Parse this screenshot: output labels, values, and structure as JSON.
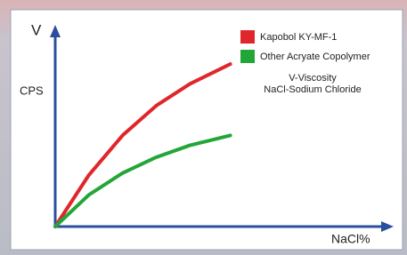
{
  "chart_data": {
    "type": "line",
    "y_label": "V",
    "y_unit_label": "CPS",
    "x_label": "NaCl%",
    "annotations": [
      "V-Viscosity",
      "NaCl-Sodium Chloride"
    ],
    "x": [
      0,
      1,
      2,
      3,
      4,
      5.2
    ],
    "series": [
      {
        "name": "Kapobol KY-MF-1",
        "color": "#e0262b",
        "values": [
          0,
          2.6,
          4.6,
          6.1,
          7.2,
          8.2
        ]
      },
      {
        "name": "Other Acryate Copolymer",
        "color": "#23a638",
        "values": [
          0,
          1.6,
          2.7,
          3.5,
          4.1,
          4.6
        ]
      }
    ],
    "xlim": [
      0,
      10
    ],
    "ylim": [
      0,
      10
    ],
    "grid": false,
    "legend": "top-right"
  }
}
